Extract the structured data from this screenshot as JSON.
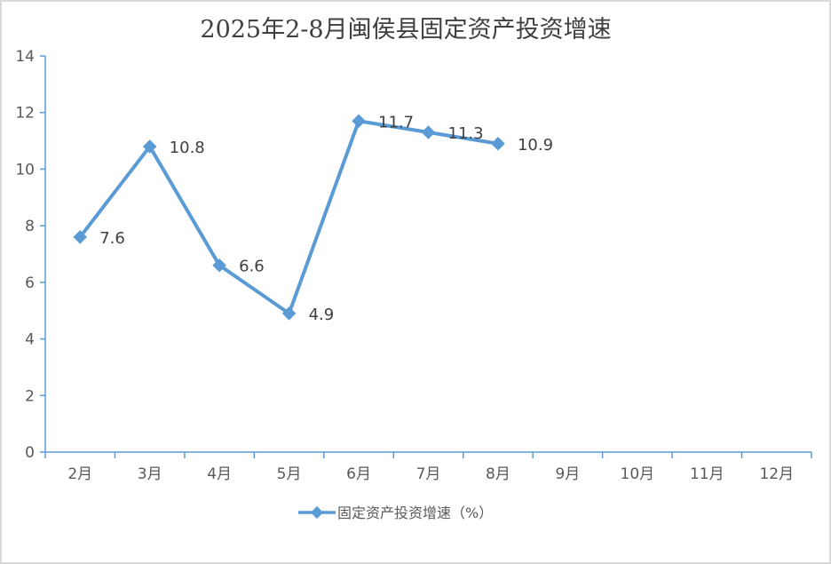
{
  "chart_data": {
    "type": "line",
    "title": "2025年2-8月闽侯县固定资产投资增速",
    "categories": [
      "2月",
      "3月",
      "4月",
      "5月",
      "6月",
      "7月",
      "8月",
      "9月",
      "10月",
      "11月",
      "12月"
    ],
    "series": [
      {
        "name": "固定资产投资增速（%）",
        "values": [
          7.6,
          10.8,
          6.6,
          4.9,
          11.7,
          11.3,
          10.9,
          null,
          null,
          null,
          null
        ]
      }
    ],
    "ylim": [
      0,
      14
    ],
    "yticks": [
      0,
      2,
      4,
      6,
      8,
      10,
      12,
      14
    ],
    "grid": false,
    "legend": "bottom",
    "color": "#5b9bd5"
  }
}
